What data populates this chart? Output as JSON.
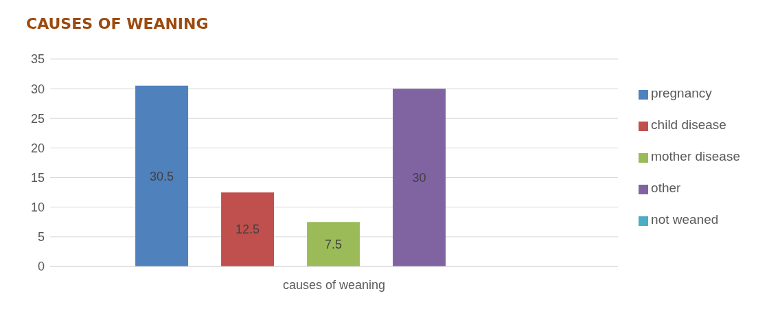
{
  "chart_data": {
    "type": "bar",
    "title": "CAUSES OF WEANING",
    "categories": [
      "causes of weaning"
    ],
    "series": [
      {
        "name": "pregnancy",
        "color": "#4f81bd",
        "values": [
          30.5
        ]
      },
      {
        "name": "child disease",
        "color": "#c0504d",
        "values": [
          12.5
        ]
      },
      {
        "name": "mother disease",
        "color": "#9bbb59",
        "values": [
          7.5
        ]
      },
      {
        "name": "other",
        "color": "#8064a2",
        "values": [
          30
        ]
      },
      {
        "name": "not weaned",
        "color": "#4bacc6",
        "values": [
          null
        ]
      }
    ],
    "ylim": [
      0,
      35
    ],
    "yticks": [
      0,
      5,
      10,
      15,
      20,
      25,
      30,
      35
    ],
    "grid": "y",
    "legend": "right",
    "data_labels": true
  }
}
